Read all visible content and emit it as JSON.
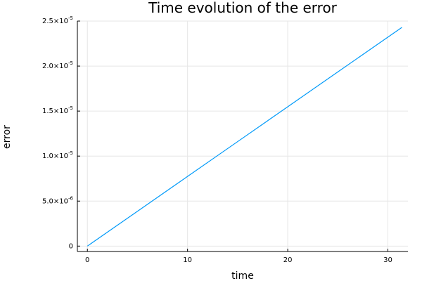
{
  "chart_data": {
    "type": "line",
    "title": "Time evolution of the error",
    "xlabel": "time",
    "ylabel": "error",
    "xlim": [
      -1,
      32
    ],
    "ylim": [
      -6e-07,
      2.5e-05
    ],
    "grid": true,
    "legend": "none",
    "x_ticks": [
      0,
      10,
      20,
      30
    ],
    "x_tick_labels": [
      "0",
      "10",
      "20",
      "30"
    ],
    "y_ticks": [
      0,
      5e-06,
      1e-05,
      1.5e-05,
      2e-05,
      2.5e-05
    ],
    "y_tick_labels": [
      {
        "mantissa": "0",
        "exponent": ""
      },
      {
        "mantissa": "5.0×10",
        "exponent": "-6"
      },
      {
        "mantissa": "1.0×10",
        "exponent": "-5"
      },
      {
        "mantissa": "1.5×10",
        "exponent": "-5"
      },
      {
        "mantissa": "2.0×10",
        "exponent": "-5"
      },
      {
        "mantissa": "2.5×10",
        "exponent": "-5"
      }
    ],
    "series": [
      {
        "color": "#009af9",
        "x": [
          0,
          5,
          10,
          15,
          20,
          25,
          31.4
        ],
        "y": [
          0,
          3.87e-06,
          7.74e-06,
          1.161e-05,
          1.548e-05,
          1.935e-05,
          2.43e-05
        ]
      }
    ]
  }
}
